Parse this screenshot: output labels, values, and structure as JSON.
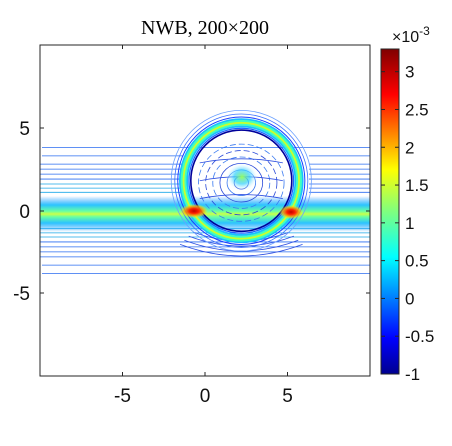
{
  "chart_data": {
    "type": "contour",
    "title": "NWB, 200×200",
    "xlabel": "",
    "ylabel": "",
    "xlim": [
      -10,
      10
    ],
    "ylim": [
      -10,
      10
    ],
    "x_ticks": [
      "-5",
      "0",
      "5"
    ],
    "y_ticks": [
      "5",
      "0",
      "-5"
    ],
    "x_tick_values": [
      -5,
      0,
      5
    ],
    "y_tick_values": [
      5,
      0,
      -5
    ],
    "grid": false,
    "features": {
      "beam_band": {
        "y_center": 0,
        "x_range": [
          -10,
          10
        ]
      },
      "ring": {
        "center": [
          2.2,
          1.8
        ],
        "semi_axes": [
          3.6,
          3.6
        ]
      },
      "hot_spots": [
        [
          0.6,
          -0.2
        ],
        [
          5.0,
          -0.1
        ]
      ]
    },
    "colorbar": {
      "min": -1,
      "max": 3.3,
      "exponent_label": "×10",
      "exponent_power": "-3",
      "ticks": [
        "3",
        "2.5",
        "2",
        "1.5",
        "1",
        "0.5",
        "0",
        "-0.5",
        "-1"
      ],
      "tick_values": [
        3,
        2.5,
        2,
        1.5,
        1,
        0.5,
        0,
        -0.5,
        -1
      ],
      "colormap": "jet"
    }
  }
}
